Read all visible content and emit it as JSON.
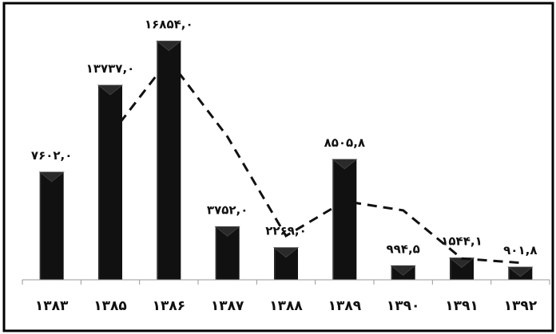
{
  "chart_data": {
    "type": "bar",
    "categories": [
      "۱۳۸۳",
      "۱۳۸۵",
      "۱۳۸۶",
      "۱۳۸۷",
      "۱۳۸۸",
      "۱۳۸۹",
      "۱۳۹۰",
      "۱۳۹۱",
      "۱۳۹۲"
    ],
    "values": [
      7602.0,
      13737.0,
      16854.0,
      3752.0,
      2269.0,
      8505.8,
      994.5,
      1544.1,
      901.8
    ],
    "data_labels": [
      "۷۶۰۲,۰",
      "۱۳۷۳۷,۰",
      "۱۶۸۵۴,۰",
      "۳۷۵۲,۰",
      "۲۲۶۹,۰",
      "۸۵۰۵,۸",
      "۹۹۴,۵",
      "۱۵۴۴,۱",
      "۹۰۱,۸"
    ],
    "trendline": {
      "style": "dashed",
      "values": [
        null,
        10200,
        15550,
        10100,
        3100,
        5550,
        4900,
        1500,
        1200
      ]
    },
    "ylim": [
      0,
      17500
    ],
    "grid": false,
    "legend": "none",
    "colors": {
      "bar": "#111111",
      "bar_top": "#2a2a2a",
      "trend": "#111111",
      "frame": "#000000"
    }
  }
}
